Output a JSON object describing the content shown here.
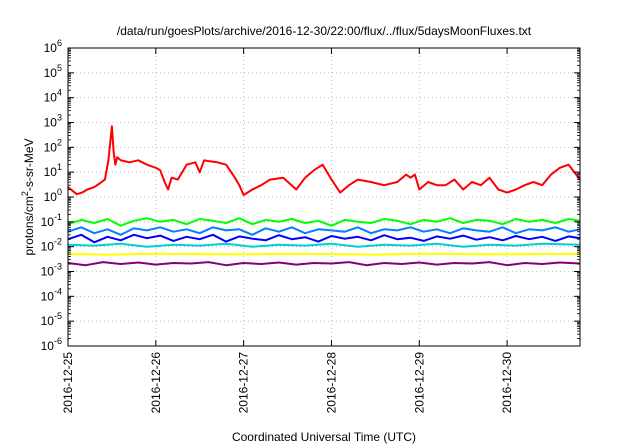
{
  "chart_data": {
    "type": "line",
    "title": "/data/run/goesPlots/archive/2016-12-30/22:00/flux/../flux/5daysMoonFluxes.txt",
    "xlabel": "Coordinated Universal Time (UTC)",
    "ylabel": {
      "prefix": "protons/cm",
      "sup": "2",
      "suffix": "-s-sr-MeV"
    },
    "yscale": "log",
    "ylim": [
      1e-06,
      1000000.0
    ],
    "y_ticks": [
      {
        "base": "10",
        "exp": "-6"
      },
      {
        "base": "10",
        "exp": "-5"
      },
      {
        "base": "10",
        "exp": "-4"
      },
      {
        "base": "10",
        "exp": "-3"
      },
      {
        "base": "10",
        "exp": "-2"
      },
      {
        "base": "10",
        "exp": "-1"
      },
      {
        "base": "10",
        "exp": "0"
      },
      {
        "base": "10",
        "exp": "1"
      },
      {
        "base": "10",
        "exp": "2"
      },
      {
        "base": "10",
        "exp": "3"
      },
      {
        "base": "10",
        "exp": "4"
      },
      {
        "base": "10",
        "exp": "5"
      },
      {
        "base": "10",
        "exp": "6"
      }
    ],
    "x_ticks": [
      "2016-12-25",
      "2016-12-26",
      "2016-12-27",
      "2016-12-28",
      "2016-12-29",
      "2016-12-30"
    ],
    "x_days_span": 5.83,
    "grid": true,
    "series": [
      {
        "color": "#ff0000",
        "x": [
          0.0,
          0.05,
          0.1,
          0.16,
          0.22,
          0.3,
          0.36,
          0.42,
          0.46,
          0.5,
          0.52,
          0.54,
          0.56,
          0.6,
          0.7,
          0.8,
          0.9,
          1.0,
          1.05,
          1.1,
          1.14,
          1.18,
          1.25,
          1.35,
          1.45,
          1.5,
          1.55,
          1.6,
          1.7,
          1.8,
          1.9,
          1.95,
          2.0,
          2.1,
          2.2,
          2.3,
          2.45,
          2.6,
          2.7,
          2.8,
          2.9,
          3.0,
          3.1,
          3.2,
          3.3,
          3.45,
          3.6,
          3.75,
          3.85,
          3.9,
          3.95,
          4.0,
          4.1,
          4.2,
          4.3,
          4.4,
          4.5,
          4.6,
          4.7,
          4.8,
          4.9,
          5.0,
          5.1,
          5.2,
          5.3,
          5.4,
          5.5,
          5.6,
          5.7,
          5.83
        ],
        "values": [
          2.5,
          1.8,
          1.3,
          1.5,
          2.0,
          2.5,
          3.5,
          5.0,
          30,
          700,
          60,
          20,
          40,
          30,
          25,
          30,
          20,
          15,
          12,
          4,
          2,
          6,
          5,
          20,
          25,
          10,
          30,
          28,
          25,
          20,
          6,
          3,
          1.2,
          2,
          3,
          5,
          6,
          2,
          6,
          12,
          20,
          5,
          1.5,
          3,
          5,
          4,
          3,
          4,
          8,
          6,
          8,
          2,
          4,
          3,
          3,
          5,
          2,
          4,
          3,
          6,
          2,
          1.5,
          2,
          3,
          4,
          3,
          8,
          15,
          20,
          5
        ]
      },
      {
        "color": "#00ff00",
        "x": [
          0.0,
          0.15,
          0.3,
          0.45,
          0.6,
          0.75,
          0.9,
          1.05,
          1.2,
          1.35,
          1.5,
          1.65,
          1.8,
          1.95,
          2.1,
          2.25,
          2.4,
          2.55,
          2.7,
          2.85,
          3.0,
          3.15,
          3.3,
          3.45,
          3.6,
          3.75,
          3.9,
          4.05,
          4.2,
          4.35,
          4.5,
          4.65,
          4.8,
          4.95,
          5.1,
          5.25,
          5.4,
          5.55,
          5.7,
          5.83
        ],
        "values": [
          0.08,
          0.12,
          0.09,
          0.13,
          0.07,
          0.11,
          0.14,
          0.1,
          0.12,
          0.08,
          0.13,
          0.11,
          0.09,
          0.14,
          0.08,
          0.12,
          0.1,
          0.13,
          0.09,
          0.11,
          0.07,
          0.12,
          0.1,
          0.09,
          0.13,
          0.11,
          0.08,
          0.12,
          0.1,
          0.14,
          0.09,
          0.12,
          0.11,
          0.08,
          0.13,
          0.1,
          0.12,
          0.09,
          0.13,
          0.11
        ]
      },
      {
        "color": "#0080ff",
        "x": [
          0.0,
          0.15,
          0.3,
          0.45,
          0.6,
          0.75,
          0.9,
          1.05,
          1.2,
          1.35,
          1.5,
          1.65,
          1.8,
          1.95,
          2.1,
          2.25,
          2.4,
          2.55,
          2.7,
          2.85,
          3.0,
          3.15,
          3.3,
          3.45,
          3.6,
          3.75,
          3.9,
          4.05,
          4.2,
          4.35,
          4.5,
          4.65,
          4.8,
          4.95,
          5.1,
          5.25,
          5.4,
          5.55,
          5.7,
          5.83
        ],
        "values": [
          0.04,
          0.06,
          0.035,
          0.05,
          0.03,
          0.055,
          0.045,
          0.06,
          0.04,
          0.05,
          0.035,
          0.06,
          0.045,
          0.05,
          0.03,
          0.055,
          0.04,
          0.06,
          0.035,
          0.05,
          0.045,
          0.04,
          0.06,
          0.035,
          0.05,
          0.045,
          0.06,
          0.04,
          0.05,
          0.035,
          0.055,
          0.045,
          0.04,
          0.06,
          0.035,
          0.05,
          0.045,
          0.06,
          0.04,
          0.05
        ]
      },
      {
        "color": "#0000ff",
        "x": [
          0.0,
          0.15,
          0.3,
          0.45,
          0.6,
          0.75,
          0.9,
          1.05,
          1.2,
          1.35,
          1.5,
          1.65,
          1.8,
          1.95,
          2.1,
          2.25,
          2.4,
          2.55,
          2.7,
          2.85,
          3.0,
          3.15,
          3.3,
          3.45,
          3.6,
          3.75,
          3.9,
          4.05,
          4.2,
          4.35,
          4.5,
          4.65,
          4.8,
          4.95,
          5.1,
          5.25,
          5.4,
          5.55,
          5.7,
          5.83
        ],
        "values": [
          0.02,
          0.03,
          0.015,
          0.025,
          0.018,
          0.03,
          0.022,
          0.028,
          0.017,
          0.025,
          0.02,
          0.03,
          0.016,
          0.026,
          0.021,
          0.018,
          0.029,
          0.02,
          0.024,
          0.016,
          0.027,
          0.021,
          0.025,
          0.018,
          0.029,
          0.02,
          0.023,
          0.017,
          0.026,
          0.021,
          0.028,
          0.019,
          0.024,
          0.018,
          0.027,
          0.02,
          0.025,
          0.017,
          0.026,
          0.022
        ]
      },
      {
        "color": "#00d0d0",
        "x": [
          0.0,
          0.3,
          0.6,
          0.9,
          1.2,
          1.5,
          1.8,
          2.1,
          2.4,
          2.7,
          3.0,
          3.3,
          3.6,
          3.9,
          4.2,
          4.5,
          4.8,
          5.1,
          5.4,
          5.83
        ],
        "values": [
          0.012,
          0.011,
          0.013,
          0.01,
          0.012,
          0.011,
          0.013,
          0.01,
          0.012,
          0.011,
          0.013,
          0.01,
          0.012,
          0.011,
          0.013,
          0.01,
          0.012,
          0.011,
          0.013,
          0.012
        ]
      },
      {
        "color": "#ffff00",
        "x": [
          0.0,
          0.5,
          1.0,
          1.5,
          2.0,
          2.5,
          3.0,
          3.5,
          4.0,
          4.5,
          5.0,
          5.5,
          5.83
        ],
        "values": [
          0.005,
          0.0048,
          0.0052,
          0.005,
          0.0049,
          0.0051,
          0.005,
          0.0048,
          0.0052,
          0.005,
          0.0049,
          0.0051,
          0.005
        ]
      },
      {
        "color": "#800080",
        "x": [
          0.0,
          0.2,
          0.4,
          0.6,
          0.8,
          1.0,
          1.2,
          1.4,
          1.6,
          1.8,
          2.0,
          2.2,
          2.4,
          2.6,
          2.8,
          3.0,
          3.2,
          3.4,
          3.6,
          3.8,
          4.0,
          4.2,
          4.4,
          4.6,
          4.8,
          5.0,
          5.2,
          5.4,
          5.6,
          5.83
        ],
        "values": [
          0.0022,
          0.0018,
          0.0024,
          0.002,
          0.0023,
          0.0019,
          0.0022,
          0.0021,
          0.0024,
          0.0018,
          0.0022,
          0.002,
          0.0023,
          0.0019,
          0.0022,
          0.0021,
          0.0024,
          0.0018,
          0.0022,
          0.002,
          0.0023,
          0.0019,
          0.0022,
          0.0021,
          0.0024,
          0.0018,
          0.0022,
          0.002,
          0.0023,
          0.0021
        ]
      }
    ]
  }
}
